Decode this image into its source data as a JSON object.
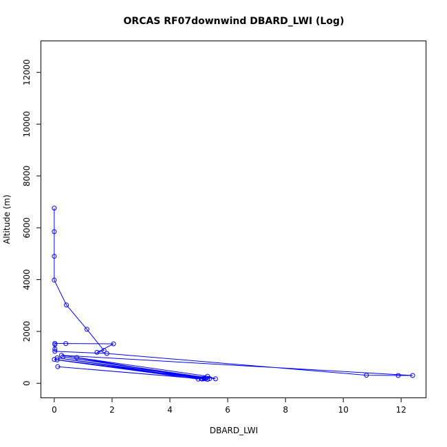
{
  "chart_data": {
    "type": "line",
    "title": "ORCAS RF07downwind DBARD_LWI (Log)",
    "xlabel": "DBARD_LWI",
    "ylabel": "Altitude (m)",
    "xlim": [
      -0.45,
      12.85
    ],
    "ylim": [
      -550,
      13200
    ],
    "x_ticks": [
      0,
      2,
      4,
      6,
      8,
      10,
      12
    ],
    "y_ticks": [
      0,
      2000,
      4000,
      6000,
      8000,
      10000,
      12000
    ],
    "grid": false,
    "legend": "none",
    "series": [
      {
        "color": "#0000ff",
        "points": [
          [
            0.0,
            6760
          ],
          [
            0.0,
            5850
          ],
          [
            0.0,
            4900
          ],
          [
            0.0,
            3980
          ],
          [
            0.42,
            3020
          ],
          [
            1.13,
            2080
          ],
          [
            1.72,
            1260
          ],
          [
            1.48,
            1190
          ],
          [
            2.05,
            1520
          ],
          [
            0.4,
            1530
          ],
          [
            0.02,
            1540
          ],
          [
            0.02,
            1490
          ],
          [
            0.02,
            1320
          ],
          [
            0.02,
            1230
          ],
          [
            1.82,
            1150
          ],
          [
            10.8,
            310
          ],
          [
            11.9,
            300
          ],
          [
            12.4,
            300
          ],
          [
            0.25,
            1080
          ],
          [
            5.3,
            270
          ],
          [
            5.58,
            170
          ],
          [
            0.3,
            1020
          ],
          [
            5.25,
            195
          ],
          [
            5.38,
            180
          ],
          [
            0.1,
            980
          ],
          [
            5.12,
            165
          ],
          [
            5.22,
            170
          ],
          [
            0.78,
            990
          ],
          [
            5.08,
            175
          ],
          [
            5.18,
            190
          ],
          [
            0.0,
            920
          ],
          [
            4.98,
            160
          ],
          [
            0.1,
            900
          ],
          [
            5.3,
            150
          ],
          [
            0.12,
            640
          ],
          [
            5.1,
            175
          ]
        ]
      }
    ]
  }
}
